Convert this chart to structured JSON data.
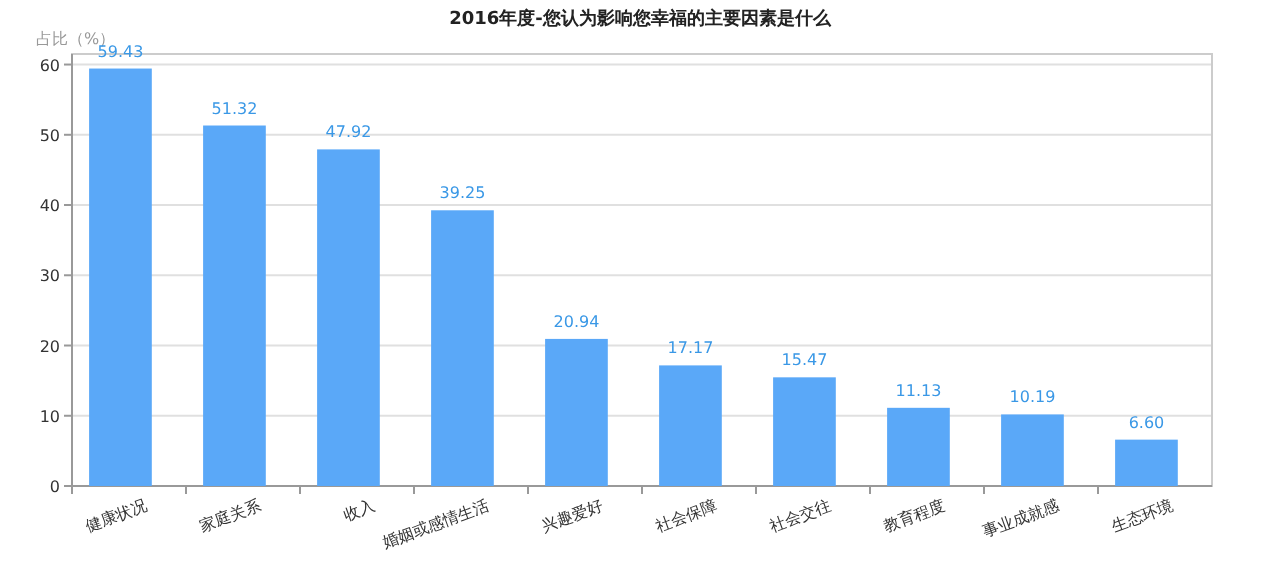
{
  "chart_data": {
    "type": "bar",
    "title": "2016年度-您认为影响您幸福的主要因素是什么",
    "ylabel": "占比（%）",
    "categories": [
      "健康状况",
      "家庭关系",
      "收入",
      "婚姻或感情生活",
      "兴趣爱好",
      "社会保障",
      "社会交往",
      "教育程度",
      "事业成就感",
      "生态环境"
    ],
    "values": [
      59.43,
      51.32,
      47.92,
      39.25,
      20.94,
      17.17,
      15.47,
      11.13,
      10.19,
      6.6
    ],
    "value_labels": [
      "59.43",
      "51.32",
      "47.92",
      "39.25",
      "20.94",
      "17.17",
      "15.47",
      "11.13",
      "10.19",
      "6.60"
    ],
    "color": "#5aa8f8",
    "ylim": [
      0,
      61.5
    ],
    "yticks": [
      0,
      10,
      20,
      30,
      40,
      50,
      60
    ],
    "grid": "y"
  }
}
